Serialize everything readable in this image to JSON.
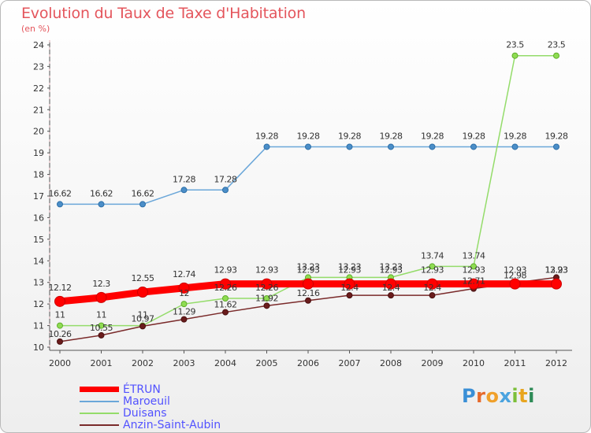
{
  "title": "Evolution du Taux de Taxe d'Habitation",
  "subtitle": "(en %)",
  "logo_text": "Proxiti",
  "chart_data": {
    "type": "line",
    "title": "Evolution du Taux de Taxe d'Habitation",
    "ylabel": "(en %)",
    "xlabel": "",
    "x": [
      "2000",
      "2001",
      "2002",
      "2003",
      "2004",
      "2005",
      "2006",
      "2007",
      "2008",
      "2009",
      "2010",
      "2011",
      "2012"
    ],
    "ylim": [
      10,
      24
    ],
    "yticks": [
      "10",
      "11",
      "12",
      "13",
      "14",
      "15",
      "16",
      "17",
      "18",
      "19",
      "20",
      "21",
      "22",
      "23",
      "24"
    ],
    "grid": false,
    "legend_position": "bottom-left",
    "series": [
      {
        "name": "ÉTRUN",
        "color": "#ff0000",
        "values": [
          12.12,
          12.3,
          12.55,
          12.74,
          12.93,
          12.93,
          12.93,
          12.93,
          12.93,
          12.93,
          12.93,
          12.93,
          12.93
        ],
        "labels": [
          "12.12",
          "12.3",
          "12.55",
          "12.74",
          "12.93",
          "12.93",
          "12.93",
          "12.93",
          "12.93",
          "12.93",
          "12.93",
          "12.93",
          "12.93"
        ]
      },
      {
        "name": "Maroeuil",
        "color": "#6ba7d9",
        "values": [
          16.62,
          16.62,
          16.62,
          17.28,
          17.28,
          19.28,
          19.28,
          19.28,
          19.28,
          19.28,
          19.28,
          19.28,
          19.28
        ],
        "labels": [
          "16.62",
          "16.62",
          "16.62",
          "17.28",
          "17.28",
          "19.28",
          "19.28",
          "19.28",
          "19.28",
          "19.28",
          "19.28",
          "19.28",
          "19.28"
        ]
      },
      {
        "name": "Duisans",
        "color": "#94dc6a",
        "values": [
          11,
          11,
          11,
          12,
          12.26,
          12.26,
          13.23,
          13.23,
          13.23,
          13.74,
          13.74,
          23.5,
          23.5
        ],
        "labels": [
          "11",
          "11",
          "11",
          "12",
          "12.26",
          "12.26",
          "13.23",
          "13.23",
          "13.23",
          "13.74",
          "13.74",
          "23.5",
          "23.5"
        ]
      },
      {
        "name": "Anzin-Saint-Aubin",
        "color": "#7a2a2a",
        "values": [
          10.26,
          10.55,
          10.97,
          11.29,
          11.62,
          11.92,
          12.16,
          12.4,
          12.4,
          12.4,
          12.71,
          12.98,
          13.23
        ],
        "labels": [
          "10.26",
          "10.55",
          "10.97",
          "11.29",
          "11.62",
          "11.92",
          "12.16",
          "12.4",
          "12.4",
          "12.4",
          "12.71",
          "12.98",
          "13.23"
        ]
      }
    ]
  }
}
